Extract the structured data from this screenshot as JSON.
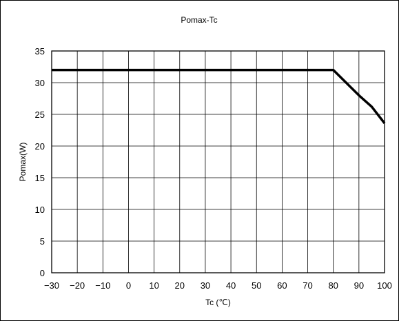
{
  "chart_data": {
    "type": "line",
    "title": "Pomax-Tc",
    "xlabel": "Tc (℃)",
    "ylabel": "Pomax(W)",
    "xlim": [
      -30,
      100
    ],
    "ylim": [
      0,
      35
    ],
    "xticks": [
      -30,
      -20,
      -10,
      0,
      10,
      20,
      30,
      40,
      50,
      60,
      70,
      80,
      90,
      100
    ],
    "yticks": [
      0,
      5,
      10,
      15,
      20,
      25,
      30,
      35
    ],
    "grid": true,
    "legend": "none",
    "series": [
      {
        "x": [
          -30,
          80,
          85,
          90,
          95,
          100
        ],
        "y": [
          32,
          32,
          30,
          28,
          26.2,
          23.6
        ],
        "color": "#000000"
      }
    ]
  }
}
